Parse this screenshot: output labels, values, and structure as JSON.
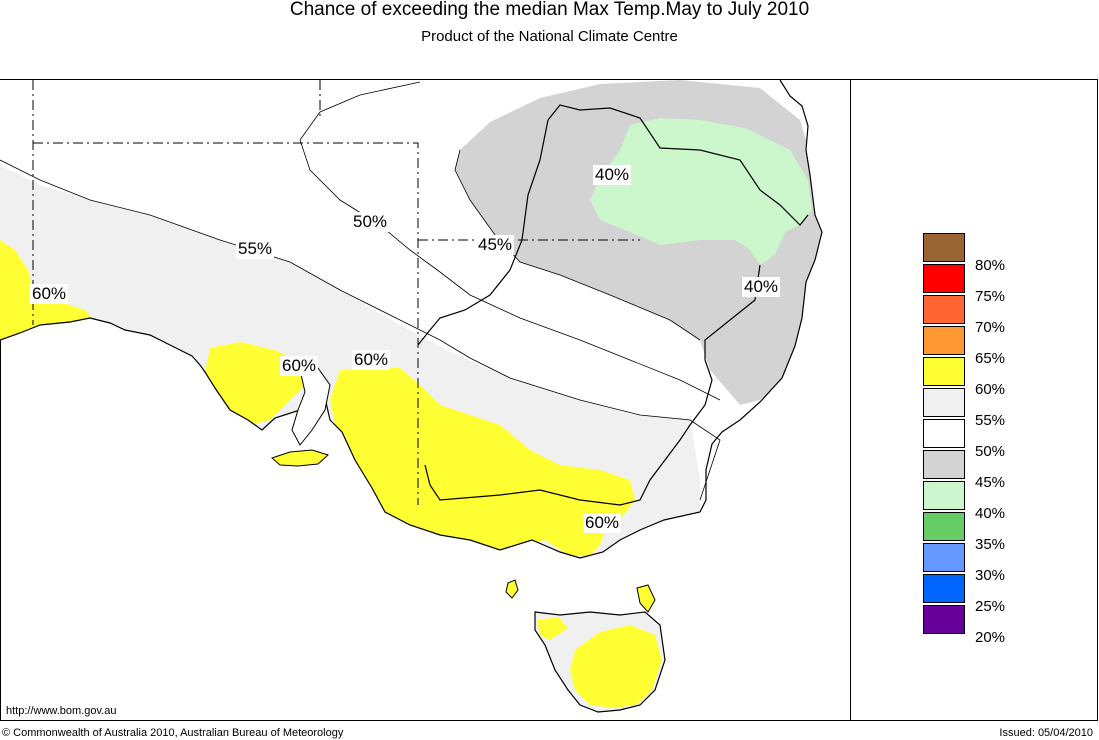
{
  "header": {
    "title": "Chance of exceeding the median Max Temp.May to July 2010",
    "subtitle": "Product of the National Climate Centre"
  },
  "colors": {
    "land": "#ffffff",
    "band_45": "#d3d3d3",
    "band_40": "#ccf7cc",
    "band_55": "#f0f0f0",
    "band_60": "#ffff33",
    "coast": "#000000"
  },
  "map_labels": [
    {
      "text": "40%"
    },
    {
      "text": "40%"
    },
    {
      "text": "45%"
    },
    {
      "text": "50%"
    },
    {
      "text": "55%"
    },
    {
      "text": "60%"
    },
    {
      "text": "60%"
    },
    {
      "text": "60%"
    },
    {
      "text": "60%"
    }
  ],
  "legend": [
    {
      "label": "80%",
      "color": "#996633"
    },
    {
      "label": "75%",
      "color": "#ff0000"
    },
    {
      "label": "70%",
      "color": "#ff6633"
    },
    {
      "label": "65%",
      "color": "#ff9933"
    },
    {
      "label": "60%",
      "color": "#ffff33"
    },
    {
      "label": "55%",
      "color": "#f0f0f0"
    },
    {
      "label": "50%",
      "color": "#ffffff"
    },
    {
      "label": "45%",
      "color": "#d3d3d3"
    },
    {
      "label": "40%",
      "color": "#ccf7cc"
    },
    {
      "label": "35%",
      "color": "#66cc66"
    },
    {
      "label": "30%",
      "color": "#6699ff"
    },
    {
      "label": "25%",
      "color": "#0066ff"
    },
    {
      "label": "20%",
      "color": "#660099"
    }
  ],
  "footer": {
    "url": "http://www.bom.gov.au",
    "copyright": "© Commonwealth of Australia 2010, Australian Bureau of Meteorology",
    "issued": "Issued: 05/04/2010"
  }
}
